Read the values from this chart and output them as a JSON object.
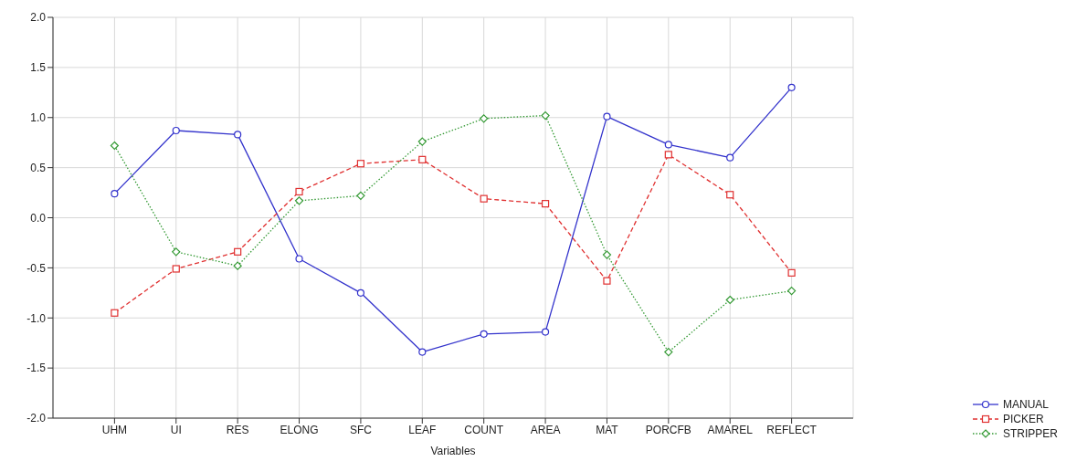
{
  "chart_data": {
    "type": "line",
    "xlabel": "Variables",
    "categories": [
      "UHM",
      "UI",
      "RES",
      "ELONG",
      "SFC",
      "LEAF",
      "COUNT",
      "AREA",
      "MAT",
      "PORCFB",
      "AMAREL",
      "REFLECT"
    ],
    "series": [
      {
        "name": "MANUAL",
        "color": "#3333cc",
        "marker": "circle",
        "line_style": "solid",
        "values": [
          0.24,
          0.87,
          0.83,
          -0.41,
          -0.75,
          -1.34,
          -1.16,
          -1.14,
          1.01,
          0.73,
          0.6,
          1.3
        ]
      },
      {
        "name": "PICKER",
        "color": "#e03030",
        "marker": "square",
        "line_style": "dashed",
        "values": [
          -0.95,
          -0.51,
          -0.34,
          0.26,
          0.54,
          0.58,
          0.19,
          0.14,
          -0.63,
          0.63,
          0.23,
          -0.55
        ]
      },
      {
        "name": "STRIPPER",
        "color": "#339933",
        "marker": "diamond",
        "line_style": "dotted",
        "values": [
          0.72,
          -0.34,
          -0.48,
          0.17,
          0.22,
          0.76,
          0.99,
          1.02,
          -0.37,
          -1.34,
          -0.82,
          -0.73
        ]
      }
    ],
    "ylim": [
      -2,
      2
    ],
    "yticks": [
      {
        "value": -2,
        "label": "-2.0"
      },
      {
        "value": -1.5,
        "label": "-1.5"
      },
      {
        "value": -1,
        "label": "-1.0"
      },
      {
        "value": -0.5,
        "label": "-0.5"
      },
      {
        "value": 0,
        "label": "0.0"
      },
      {
        "value": 0.5,
        "label": "0.5"
      },
      {
        "value": 1,
        "label": "1.0"
      },
      {
        "value": 1.5,
        "label": "1.5"
      },
      {
        "value": 2,
        "label": "2.0"
      }
    ],
    "grid": true,
    "legend": "bottom right"
  }
}
